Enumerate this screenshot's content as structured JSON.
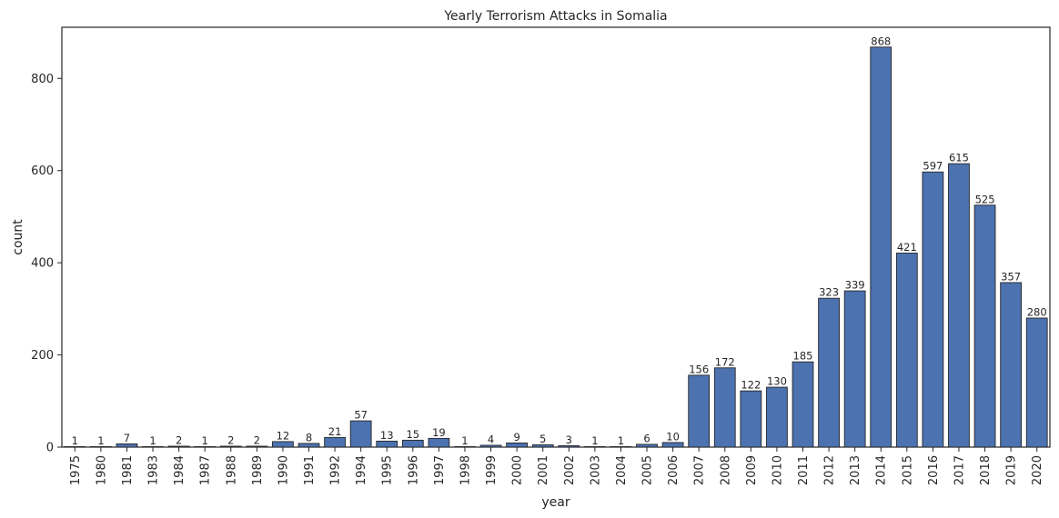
{
  "chart_data": {
    "type": "bar",
    "title": "Yearly Terrorism Attacks in Somalia",
    "xlabel": "year",
    "ylabel": "count",
    "categories": [
      "1975",
      "1980",
      "1981",
      "1983",
      "1984",
      "1987",
      "1988",
      "1989",
      "1990",
      "1991",
      "1992",
      "1994",
      "1995",
      "1996",
      "1997",
      "1998",
      "1999",
      "2000",
      "2001",
      "2002",
      "2003",
      "2004",
      "2005",
      "2006",
      "2007",
      "2008",
      "2009",
      "2010",
      "2011",
      "2012",
      "2013",
      "2014",
      "2015",
      "2016",
      "2017",
      "2018",
      "2019",
      "2020"
    ],
    "values": [
      1,
      1,
      7,
      1,
      2,
      1,
      2,
      2,
      12,
      8,
      21,
      57,
      13,
      15,
      19,
      1,
      4,
      9,
      5,
      3,
      1,
      1,
      6,
      10,
      156,
      172,
      122,
      130,
      185,
      323,
      339,
      868,
      421,
      597,
      615,
      525,
      357,
      280
    ],
    "ylim": [
      0,
      911
    ],
    "yticks": [
      0,
      200,
      400,
      600,
      800
    ],
    "grid": false,
    "bar_color": "#4c72b0",
    "edge_color": "#262626"
  }
}
